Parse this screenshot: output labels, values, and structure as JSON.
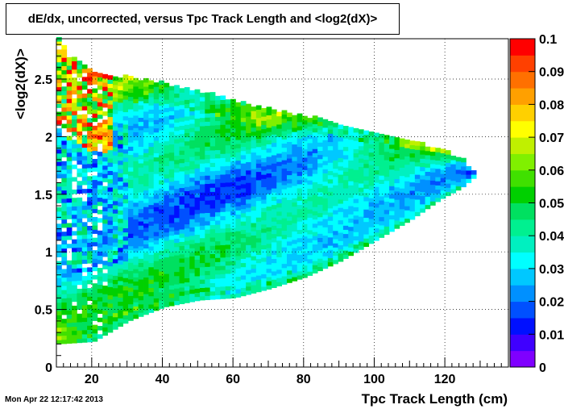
{
  "title": "dE/dx, uncorrected, versus Tpc Track Length and <log2(dX)>",
  "timestamp": "Mon Apr 22 12:17:42 2013",
  "chart_data": {
    "type": "heatmap",
    "title": "dE/dx, uncorrected, versus Tpc Track Length and <log2(dX)>",
    "xlabel": "Tpc Track Length (cm)",
    "ylabel": "<log2(dX)>",
    "xlim": [
      10,
      138
    ],
    "ylim": [
      0,
      2.85
    ],
    "x_ticks": [
      20,
      40,
      60,
      80,
      100,
      120
    ],
    "y_ticks": [
      0,
      0.5,
      1,
      1.5,
      2,
      2.5
    ],
    "zlim": [
      0,
      0.1
    ],
    "z_ticks": [
      "0",
      "0.01",
      "0.02",
      "0.03",
      "0.04",
      "0.05",
      "0.06",
      "0.07",
      "0.08",
      "0.09",
      "0.1"
    ],
    "grid": true,
    "palette": [
      "#7f00ff",
      "#3f00ff",
      "#0010ff",
      "#0050ff",
      "#0090ff",
      "#00c8ff",
      "#00ffff",
      "#00f0c0",
      "#00f090",
      "#00e060",
      "#00d000",
      "#40e000",
      "#80f000",
      "#c0f000",
      "#ffff00",
      "#ffd000",
      "#ffa000",
      "#ff7000",
      "#ff4000",
      "#ff0000"
    ],
    "region": {
      "x_start": 10,
      "x_end": 128,
      "upper": [
        [
          10,
          2.85
        ],
        [
          13,
          2.7
        ],
        [
          20,
          2.55
        ],
        [
          30,
          2.5
        ],
        [
          40,
          2.45
        ],
        [
          50,
          2.38
        ],
        [
          60,
          2.3
        ],
        [
          70,
          2.22
        ],
        [
          80,
          2.17
        ],
        [
          90,
          2.1
        ],
        [
          100,
          2.02
        ],
        [
          110,
          1.95
        ],
        [
          118,
          1.88
        ],
        [
          124,
          1.8
        ],
        [
          128,
          1.68
        ]
      ],
      "lower": [
        [
          10,
          0.2
        ],
        [
          20,
          0.22
        ],
        [
          30,
          0.4
        ],
        [
          40,
          0.52
        ],
        [
          50,
          0.58
        ],
        [
          60,
          0.6
        ],
        [
          70,
          0.68
        ],
        [
          80,
          0.78
        ],
        [
          90,
          0.92
        ],
        [
          100,
          1.1
        ],
        [
          110,
          1.28
        ],
        [
          118,
          1.45
        ],
        [
          124,
          1.55
        ],
        [
          128,
          1.65
        ]
      ]
    }
  }
}
